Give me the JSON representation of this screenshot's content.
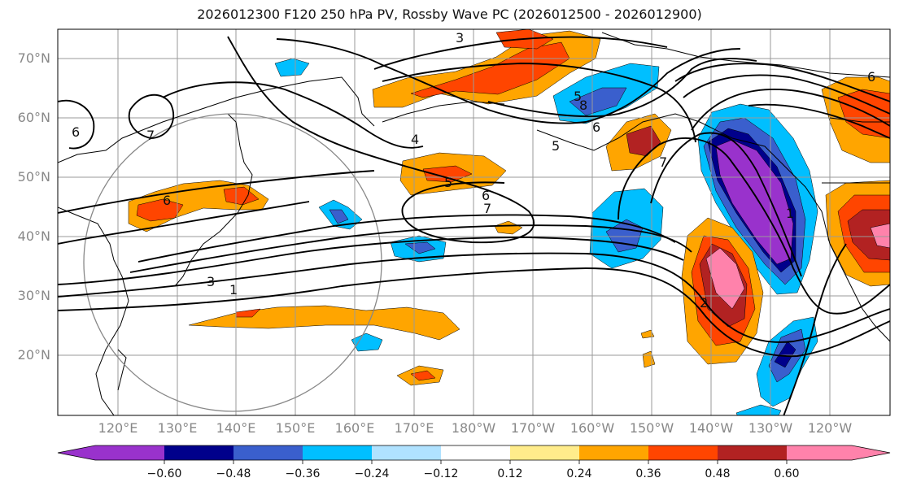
{
  "title": "2026012300 F120 250 hPa PV, Rossby Wave PC (2026012500 - 2026012900)",
  "lat_labels": [
    "70°N",
    "60°N",
    "50°N",
    "40°N",
    "30°N",
    "20°N"
  ],
  "lon_labels": [
    "120°E",
    "130°E",
    "140°E",
    "150°E",
    "160°E",
    "170°E",
    "180°W",
    "170°W",
    "160°W",
    "150°W",
    "140°W",
    "130°W",
    "120°W"
  ],
  "contour_labels": [
    "3",
    "7",
    "6",
    "4",
    "5",
    "5",
    "6",
    "7",
    "1",
    "3",
    "8",
    "6",
    "5",
    "7",
    "1",
    "2",
    "6",
    "6"
  ],
  "colorbar": {
    "tick_labels": [
      "−0.60",
      "−0.48",
      "−0.36",
      "−0.24",
      "−0.12",
      "0.12",
      "0.24",
      "0.36",
      "0.48",
      "0.60"
    ],
    "colors": {
      "c1": "#9932cc",
      "c2": "#00008b",
      "c3": "#3a5fcd",
      "c4": "#00bfff",
      "c5": "#b0e2ff",
      "c6": "#ffffff",
      "c7": "#ffec8b",
      "c8": "#ffa500",
      "c9": "#ff4500",
      "c10": "#b22222",
      "c11": "#ff82ab"
    }
  }
}
